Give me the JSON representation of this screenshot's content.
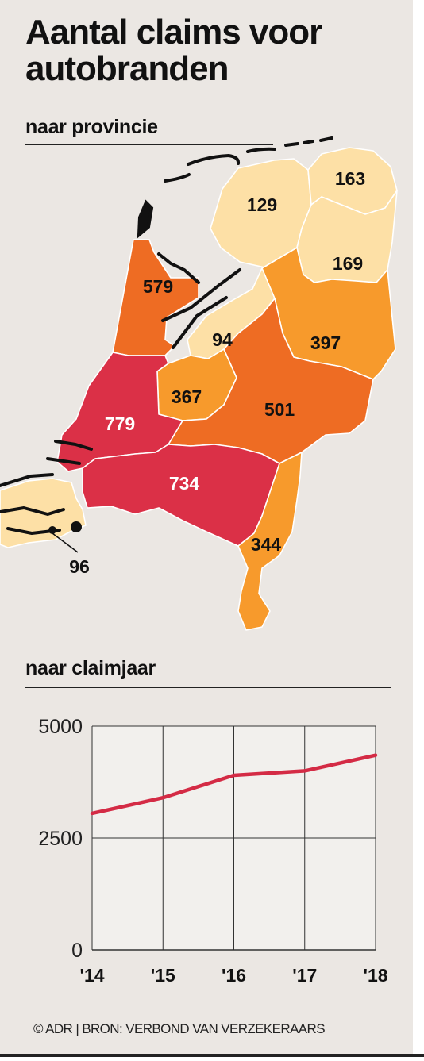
{
  "title": "Aantal claims voor autobranden",
  "map": {
    "subtitle": "naar provincie",
    "colors": {
      "low": "#fde0a6",
      "mid": "#f79a2c",
      "high": "#ee6c23",
      "top": "#db3047",
      "border": "#ffffff",
      "outline": "#111111"
    }
  },
  "trend": {
    "subtitle": "naar claimjaar"
  },
  "credit": "© ADR | BRON: VERBOND VAN VERZEKERAARS",
  "chart_data": [
    {
      "type": "choropleth",
      "title": "naar provincie",
      "regions": [
        {
          "value": 129
        },
        {
          "value": 163
        },
        {
          "value": 169
        },
        {
          "value": 579
        },
        {
          "value": 94
        },
        {
          "value": 397
        },
        {
          "value": 367
        },
        {
          "value": 501
        },
        {
          "value": 779
        },
        {
          "value": 734
        },
        {
          "value": 344
        },
        {
          "value": 96
        }
      ]
    },
    {
      "type": "line",
      "title": "naar claimjaar",
      "x": [
        "'14",
        "'15",
        "'16",
        "'17",
        "'18"
      ],
      "series": [
        {
          "values": [
            3050,
            3400,
            3900,
            4000,
            4350
          ],
          "color": "#d42b45"
        }
      ],
      "ylim": [
        0,
        5000
      ],
      "yticks": [
        0,
        2500,
        5000
      ],
      "grid": true
    }
  ]
}
